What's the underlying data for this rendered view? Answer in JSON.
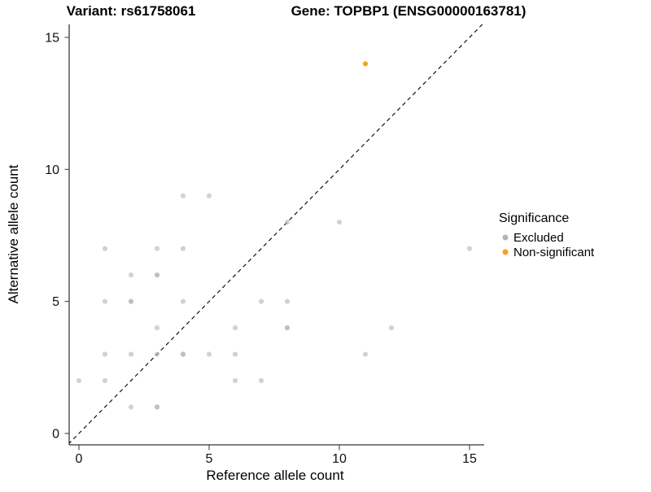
{
  "chart_data": {
    "type": "scatter",
    "titles": {
      "left": "Variant: rs61758061",
      "right": "Gene: TOPBP1 (ENSG00000163781)"
    },
    "xlabel": "Reference allele count",
    "ylabel": "Alternative allele count",
    "xlim": [
      -0.6,
      16
    ],
    "ylim": [
      -0.6,
      16
    ],
    "xticks": [
      0,
      5,
      10,
      15
    ],
    "yticks": [
      0,
      5,
      10,
      15
    ],
    "grid": false,
    "identity_line": {
      "style": "dashed",
      "color": "#000000"
    },
    "legend": {
      "title": "Significance",
      "position": "right",
      "entries": [
        {
          "label": "Excluded",
          "color": "#b4b4b4"
        },
        {
          "label": "Non-significant",
          "color": "#f9a11b"
        }
      ]
    },
    "series": [
      {
        "name": "Excluded",
        "color": "#b4b4b4",
        "opacity": 0.6,
        "points": [
          [
            0,
            2
          ],
          [
            1,
            2
          ],
          [
            1,
            3
          ],
          [
            1,
            5
          ],
          [
            1,
            7
          ],
          [
            2,
            1
          ],
          [
            2,
            3
          ],
          [
            2,
            5
          ],
          [
            2,
            5
          ],
          [
            2,
            6
          ],
          [
            3,
            1
          ],
          [
            3,
            1
          ],
          [
            3,
            3
          ],
          [
            3,
            4
          ],
          [
            3,
            6
          ],
          [
            3,
            6
          ],
          [
            3,
            7
          ],
          [
            4,
            3
          ],
          [
            4,
            3
          ],
          [
            4,
            5
          ],
          [
            4,
            7
          ],
          [
            4,
            9
          ],
          [
            5,
            3
          ],
          [
            5,
            9
          ],
          [
            6,
            2
          ],
          [
            6,
            3
          ],
          [
            6,
            4
          ],
          [
            7,
            2
          ],
          [
            7,
            5
          ],
          [
            8,
            4
          ],
          [
            8,
            4
          ],
          [
            8,
            5
          ],
          [
            8,
            8
          ],
          [
            10,
            8
          ],
          [
            11,
            3
          ],
          [
            12,
            4
          ],
          [
            15,
            7
          ]
        ]
      },
      {
        "name": "Non-significant",
        "color": "#f9a11b",
        "opacity": 1,
        "points": [
          [
            11,
            14
          ]
        ]
      }
    ]
  }
}
